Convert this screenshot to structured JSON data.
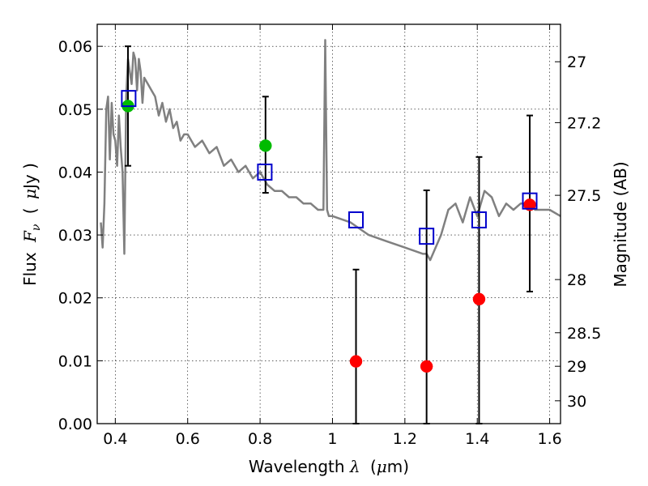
{
  "chart_data": {
    "type": "scatter",
    "xlabel": {
      "prefix": "Wavelength",
      "symbol": "λ",
      "unit_open": "(",
      "unit_mu": "μ",
      "unit_rest": "m)"
    },
    "ylabel": {
      "prefix": "Flux",
      "symbol": "F",
      "sub": "ν",
      "unit_open": "(",
      "unit_mu": "μ",
      "unit_rest": "Jy )"
    },
    "y2label": "Magnitude (AB)",
    "xlim": [
      0.35,
      1.63
    ],
    "ylim": [
      0.0,
      0.0635
    ],
    "grid": true,
    "x_ticks": [
      {
        "v": 0.4,
        "label": "0.4"
      },
      {
        "v": 0.6,
        "label": "0.6"
      },
      {
        "v": 0.8,
        "label": "0.8"
      },
      {
        "v": 1.0,
        "label": "1"
      },
      {
        "v": 1.2,
        "label": "1.2"
      },
      {
        "v": 1.4,
        "label": "1.4"
      },
      {
        "v": 1.6,
        "label": "1.6"
      }
    ],
    "y_ticks": [
      {
        "v": 0.0,
        "label": "0.00"
      },
      {
        "v": 0.01,
        "label": "0.01"
      },
      {
        "v": 0.02,
        "label": "0.02"
      },
      {
        "v": 0.03,
        "label": "0.03"
      },
      {
        "v": 0.04,
        "label": "0.04"
      },
      {
        "v": 0.05,
        "label": "0.05"
      },
      {
        "v": 0.06,
        "label": "0.06"
      }
    ],
    "y2_ticks": [
      {
        "mag": 27,
        "label": "27"
      },
      {
        "mag": 27.2,
        "label": "27.2"
      },
      {
        "mag": 27.5,
        "label": "27.5"
      },
      {
        "mag": 28,
        "label": "28"
      },
      {
        "mag": 28.5,
        "label": "28.5"
      },
      {
        "mag": 29,
        "label": "29"
      },
      {
        "mag": 30,
        "label": "30"
      }
    ],
    "colors": {
      "model": "#808080",
      "green": "#00bb00",
      "red": "#ff0000",
      "blue": "#0000cc",
      "error": "#000000"
    },
    "model_sed": {
      "x": [
        0.36,
        0.365,
        0.37,
        0.375,
        0.38,
        0.385,
        0.39,
        0.395,
        0.4,
        0.405,
        0.41,
        0.415,
        0.42,
        0.425,
        0.43,
        0.435,
        0.44,
        0.445,
        0.45,
        0.455,
        0.46,
        0.465,
        0.47,
        0.475,
        0.48,
        0.49,
        0.5,
        0.51,
        0.52,
        0.53,
        0.54,
        0.55,
        0.56,
        0.57,
        0.58,
        0.59,
        0.6,
        0.62,
        0.64,
        0.66,
        0.68,
        0.7,
        0.72,
        0.74,
        0.76,
        0.78,
        0.8,
        0.82,
        0.84,
        0.86,
        0.88,
        0.9,
        0.92,
        0.94,
        0.96,
        0.975,
        0.98,
        0.985,
        0.99,
        1.0,
        1.05,
        1.1,
        1.15,
        1.2,
        1.25,
        1.26,
        1.27,
        1.3,
        1.32,
        1.34,
        1.36,
        1.38,
        1.4,
        1.42,
        1.44,
        1.46,
        1.48,
        1.5,
        1.52,
        1.54,
        1.56,
        1.58,
        1.6,
        1.63
      ],
      "y": [
        0.032,
        0.028,
        0.035,
        0.05,
        0.052,
        0.042,
        0.051,
        0.046,
        0.045,
        0.041,
        0.049,
        0.044,
        0.04,
        0.027,
        0.052,
        0.058,
        0.056,
        0.054,
        0.059,
        0.058,
        0.053,
        0.058,
        0.056,
        0.051,
        0.055,
        0.054,
        0.053,
        0.052,
        0.049,
        0.051,
        0.048,
        0.05,
        0.047,
        0.048,
        0.045,
        0.046,
        0.046,
        0.044,
        0.045,
        0.043,
        0.044,
        0.041,
        0.042,
        0.04,
        0.041,
        0.039,
        0.04,
        0.038,
        0.037,
        0.037,
        0.036,
        0.036,
        0.035,
        0.035,
        0.034,
        0.034,
        0.061,
        0.034,
        0.033,
        0.033,
        0.032,
        0.03,
        0.029,
        0.028,
        0.027,
        0.027,
        0.026,
        0.03,
        0.034,
        0.035,
        0.032,
        0.036,
        0.033,
        0.037,
        0.036,
        0.033,
        0.035,
        0.034,
        0.035,
        0.035,
        0.034,
        0.034,
        0.034,
        0.033
      ]
    },
    "series": [
      {
        "marker": "circle-green",
        "x": [
          0.435,
          0.815
        ],
        "y": [
          0.0505,
          0.0442
        ],
        "yerr_low": [
          0.041,
          0.0367
        ],
        "yerr_high": [
          0.06,
          0.052
        ]
      },
      {
        "marker": "circle-red",
        "x": [
          1.065,
          1.26,
          1.405,
          1.545
        ],
        "y": [
          0.0099,
          0.0091,
          0.0198,
          0.0348
        ],
        "yerr_low": [
          0.0,
          0.0,
          0.0,
          0.021
        ],
        "yerr_high": [
          0.0245,
          0.0371,
          0.0424,
          0.049
        ]
      },
      {
        "marker": "square-blue",
        "x": [
          0.437,
          0.813,
          1.065,
          1.26,
          1.405,
          1.545
        ],
        "y": [
          0.0517,
          0.04,
          0.0324,
          0.0298,
          0.0324,
          0.0354
        ]
      }
    ]
  }
}
